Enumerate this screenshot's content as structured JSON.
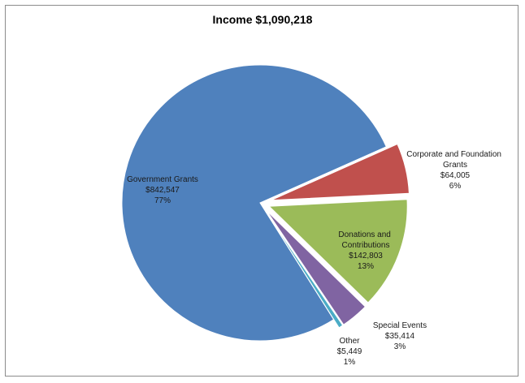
{
  "chart_data": {
    "type": "pie",
    "title": "Income $1,090,218",
    "slices": [
      {
        "name": "Government Grants",
        "value": 842547,
        "amount": "$842,547",
        "percent": "77%",
        "color": "#4F81BD"
      },
      {
        "name": "Corporate and Foundation Grants",
        "value": 64005,
        "amount": "$64,005",
        "percent": "6%",
        "color": "#C0504D"
      },
      {
        "name": "Donations and Contributions",
        "value": 142803,
        "amount": "$142,803",
        "percent": "13%",
        "color": "#9BBB59"
      },
      {
        "name": "Special Events",
        "value": 35414,
        "amount": "$35,414",
        "percent": "3%",
        "color": "#8064A2"
      },
      {
        "name": "Other",
        "value": 5449,
        "amount": "$5,449",
        "percent": "1%",
        "color": "#4BACC6"
      }
    ]
  }
}
